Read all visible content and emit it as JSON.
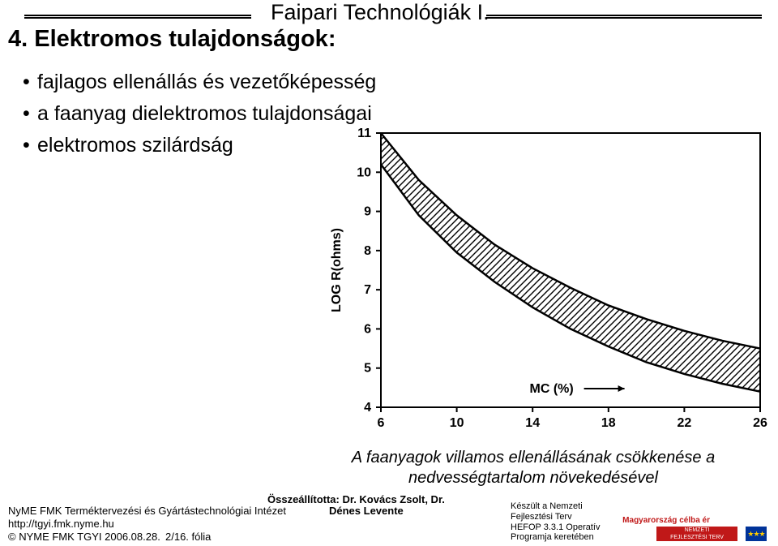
{
  "header": {
    "title": "Faipari Technológiák I."
  },
  "title": "4. Elektromos tulajdonságok:",
  "bullets": [
    "fajlagos ellenállás és vezetőképesség",
    "a faanyag dielektromos tulajdonságai",
    "elektromos szilárdság"
  ],
  "chart": {
    "type": "area-band",
    "x_label": "MC (%)",
    "y_label": "LOG R(ohms)",
    "x_ticks": [
      6,
      10,
      14,
      18,
      22,
      26
    ],
    "y_ticks": [
      4,
      5,
      6,
      7,
      8,
      9,
      10,
      11
    ],
    "xlim": [
      6,
      26
    ],
    "ylim": [
      4,
      11
    ],
    "background_color": "#ffffff",
    "axis_color": "#000000",
    "band_fill": "hatch-diagonal",
    "band_stroke": "#000000",
    "tick_fontsize": 16,
    "label_fontsize": 16,
    "upper_curve": [
      {
        "x": 6,
        "y": 11.0
      },
      {
        "x": 8,
        "y": 9.8
      },
      {
        "x": 10,
        "y": 8.9
      },
      {
        "x": 12,
        "y": 8.15
      },
      {
        "x": 14,
        "y": 7.55
      },
      {
        "x": 16,
        "y": 7.05
      },
      {
        "x": 18,
        "y": 6.6
      },
      {
        "x": 20,
        "y": 6.25
      },
      {
        "x": 22,
        "y": 5.95
      },
      {
        "x": 24,
        "y": 5.7
      },
      {
        "x": 26,
        "y": 5.5
      }
    ],
    "lower_curve": [
      {
        "x": 6,
        "y": 10.2
      },
      {
        "x": 8,
        "y": 8.9
      },
      {
        "x": 10,
        "y": 7.95
      },
      {
        "x": 12,
        "y": 7.2
      },
      {
        "x": 14,
        "y": 6.55
      },
      {
        "x": 16,
        "y": 6.0
      },
      {
        "x": 18,
        "y": 5.55
      },
      {
        "x": 20,
        "y": 5.15
      },
      {
        "x": 22,
        "y": 4.85
      },
      {
        "x": 24,
        "y": 4.6
      },
      {
        "x": 26,
        "y": 4.4
      }
    ]
  },
  "caption_line1": "A faanyagok villamos ellenállásának csökkenése a",
  "caption_line2": "nedvességtartalom növekedésével",
  "footer": {
    "compiled_prefix": "Összeállította: Dr. Kovács Zsolt, Dr.",
    "compiled_name2": "Dénes Levente",
    "institute": "NyME FMK Terméktervezési és Gyártástechnológiai Intézet",
    "url": "http://tgyi.fmk.nyme.hu",
    "copyright": "© NYME FMK TGYI 2006.08.28.",
    "slide": "2/16. fólia",
    "funding_l1": "Készült a Nemzeti",
    "funding_l2": "Fejlesztési Terv",
    "funding_l3": "HEFOP 3.3.1 Operatív",
    "funding_l4": "Programja keretében",
    "nation_text": "Magyarország célba ér",
    "badge_l1": "NEMZETI",
    "badge_l2": "FEJLESZTÉSI TERV"
  }
}
